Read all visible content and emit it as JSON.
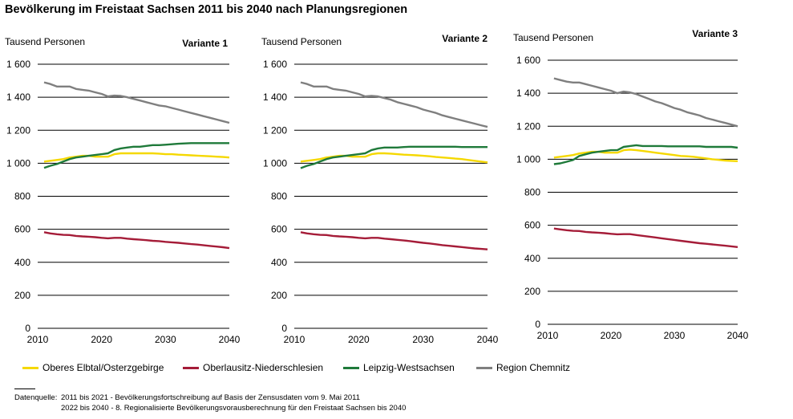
{
  "title": "Bevölkerung im Freistaat Sachsen 2011 bis 2040 nach Planungsregionen",
  "colors": {
    "Oberes Elbtal/Osterzgebirge": "#f5d800",
    "Oberlausitz-Niederschlesien": "#a51c38",
    "Leipzig-Westsachsen": "#1f7a3a",
    "Region Chemnitz": "#7f7f7f"
  },
  "legend": [
    {
      "label": "Oberes Elbtal/Osterzgebirge",
      "color": "#f5d800"
    },
    {
      "label": "Oberlausitz-Niederschlesien",
      "color": "#a51c38"
    },
    {
      "label": "Leipzig-Westsachsen",
      "color": "#1f7a3a"
    },
    {
      "label": "Region Chemnitz",
      "color": "#7f7f7f"
    }
  ],
  "source": {
    "label": "Datenquelle:",
    "line1": "2011 bis 2021 - Bevölkerungsfortschreibung auf Basis der Zensusdaten vom 9. Mai 2011",
    "line2": "2022 bis 2040 - 8. Regionalisierte Bevölkerungsvorausberechnung für den Freistaat Sachsen bis 2040"
  },
  "chart_data": [
    {
      "type": "line",
      "title": "Variante 1",
      "ylabel": "Tausend Personen",
      "xlabel": "",
      "xlim": [
        2010,
        2040
      ],
      "ylim": [
        0,
        1600
      ],
      "grid": "horizontal",
      "x_ticks": [
        "2010",
        "2020",
        "2030",
        "2040"
      ],
      "y_ticks": [
        "0",
        "200",
        "400",
        "600",
        "800",
        "1 000",
        "1 200",
        "1 400",
        "1 600"
      ],
      "x": [
        2011,
        2012,
        2013,
        2014,
        2015,
        2016,
        2017,
        2018,
        2019,
        2020,
        2021,
        2022,
        2023,
        2024,
        2025,
        2026,
        2027,
        2028,
        2029,
        2030,
        2031,
        2032,
        2033,
        2034,
        2035,
        2036,
        2037,
        2038,
        2039,
        2040
      ],
      "series": [
        {
          "name": "Oberes Elbtal/Osterzgebirge",
          "values": [
            1010,
            1015,
            1020,
            1025,
            1035,
            1040,
            1045,
            1045,
            1040,
            1040,
            1040,
            1055,
            1060,
            1060,
            1060,
            1060,
            1060,
            1060,
            1058,
            1055,
            1055,
            1052,
            1050,
            1048,
            1046,
            1044,
            1042,
            1040,
            1038,
            1035
          ]
        },
        {
          "name": "Oberlausitz-Niederschlesien",
          "values": [
            582,
            575,
            570,
            566,
            565,
            560,
            557,
            555,
            552,
            548,
            545,
            548,
            548,
            543,
            540,
            537,
            534,
            530,
            528,
            524,
            521,
            518,
            514,
            510,
            507,
            503,
            499,
            495,
            491,
            486
          ]
        },
        {
          "name": "Leipzig-Westsachsen",
          "values": [
            972,
            985,
            995,
            1010,
            1025,
            1035,
            1040,
            1045,
            1050,
            1055,
            1060,
            1080,
            1090,
            1095,
            1100,
            1100,
            1105,
            1110,
            1110,
            1112,
            1115,
            1118,
            1120,
            1122,
            1122,
            1122,
            1122,
            1122,
            1122,
            1122
          ]
        },
        {
          "name": "Region Chemnitz",
          "values": [
            1490,
            1480,
            1465,
            1465,
            1465,
            1450,
            1445,
            1440,
            1430,
            1420,
            1405,
            1410,
            1408,
            1400,
            1390,
            1380,
            1370,
            1360,
            1350,
            1345,
            1335,
            1325,
            1315,
            1305,
            1295,
            1285,
            1275,
            1265,
            1255,
            1245
          ]
        }
      ]
    },
    {
      "type": "line",
      "title": "Variante 2",
      "ylabel": "Tausend Personen",
      "xlabel": "",
      "xlim": [
        2010,
        2040
      ],
      "ylim": [
        0,
        1600
      ],
      "grid": "horizontal",
      "x_ticks": [
        "2010",
        "2020",
        "2030",
        "2040"
      ],
      "y_ticks": [
        "0",
        "200",
        "400",
        "600",
        "800",
        "1 000",
        "1 200",
        "1 400",
        "1 600"
      ],
      "x": [
        2011,
        2012,
        2013,
        2014,
        2015,
        2016,
        2017,
        2018,
        2019,
        2020,
        2021,
        2022,
        2023,
        2024,
        2025,
        2026,
        2027,
        2028,
        2029,
        2030,
        2031,
        2032,
        2033,
        2034,
        2035,
        2036,
        2037,
        2038,
        2039,
        2040
      ],
      "series": [
        {
          "name": "Oberes Elbtal/Osterzgebirge",
          "values": [
            1010,
            1015,
            1020,
            1025,
            1035,
            1040,
            1045,
            1045,
            1040,
            1040,
            1040,
            1055,
            1060,
            1060,
            1058,
            1055,
            1052,
            1050,
            1048,
            1045,
            1042,
            1038,
            1035,
            1032,
            1028,
            1025,
            1020,
            1015,
            1010,
            1005
          ]
        },
        {
          "name": "Oberlausitz-Niederschlesien",
          "values": [
            582,
            575,
            570,
            566,
            565,
            560,
            557,
            555,
            552,
            548,
            545,
            548,
            548,
            543,
            540,
            536,
            532,
            528,
            523,
            518,
            514,
            509,
            504,
            500,
            496,
            492,
            488,
            484,
            481,
            478
          ]
        },
        {
          "name": "Leipzig-Westsachsen",
          "values": [
            970,
            985,
            995,
            1010,
            1025,
            1035,
            1040,
            1045,
            1050,
            1055,
            1060,
            1080,
            1090,
            1095,
            1095,
            1095,
            1098,
            1100,
            1100,
            1100,
            1100,
            1100,
            1100,
            1100,
            1100,
            1098,
            1098,
            1098,
            1098,
            1098
          ]
        },
        {
          "name": "Region Chemnitz",
          "values": [
            1490,
            1480,
            1465,
            1465,
            1465,
            1450,
            1445,
            1440,
            1430,
            1420,
            1405,
            1408,
            1405,
            1395,
            1385,
            1370,
            1360,
            1350,
            1340,
            1325,
            1315,
            1305,
            1290,
            1280,
            1270,
            1260,
            1250,
            1240,
            1230,
            1220
          ]
        }
      ]
    },
    {
      "type": "line",
      "title": "Variante 3",
      "ylabel": "Tausend Personen",
      "xlabel": "",
      "xlim": [
        2010,
        2040
      ],
      "ylim": [
        0,
        1600
      ],
      "grid": "horizontal",
      "x_ticks": [
        "2010",
        "2020",
        "2030",
        "2040"
      ],
      "y_ticks": [
        "0",
        "200",
        "400",
        "600",
        "800",
        "1 000",
        "1 200",
        "1 400",
        "1 600"
      ],
      "x": [
        2011,
        2012,
        2013,
        2014,
        2015,
        2016,
        2017,
        2018,
        2019,
        2020,
        2021,
        2022,
        2023,
        2024,
        2025,
        2026,
        2027,
        2028,
        2029,
        2030,
        2031,
        2032,
        2033,
        2034,
        2035,
        2036,
        2037,
        2038,
        2039,
        2040
      ],
      "series": [
        {
          "name": "Oberes Elbtal/Osterzgebirge",
          "values": [
            1010,
            1015,
            1020,
            1025,
            1035,
            1040,
            1045,
            1045,
            1040,
            1040,
            1040,
            1055,
            1058,
            1055,
            1050,
            1045,
            1040,
            1035,
            1030,
            1025,
            1020,
            1018,
            1015,
            1010,
            1005,
            1000,
            996,
            992,
            990,
            988
          ]
        },
        {
          "name": "Oberlausitz-Niederschlesien",
          "values": [
            580,
            575,
            570,
            566,
            565,
            560,
            557,
            555,
            552,
            548,
            545,
            546,
            546,
            541,
            536,
            531,
            526,
            521,
            516,
            511,
            506,
            501,
            496,
            491,
            488,
            484,
            480,
            476,
            472,
            468
          ]
        },
        {
          "name": "Leipzig-Westsachsen",
          "values": [
            970,
            975,
            985,
            995,
            1020,
            1030,
            1040,
            1045,
            1050,
            1055,
            1055,
            1075,
            1080,
            1085,
            1080,
            1080,
            1080,
            1080,
            1078,
            1078,
            1078,
            1078,
            1078,
            1078,
            1075,
            1075,
            1075,
            1075,
            1075,
            1070
          ]
        },
        {
          "name": "Region Chemnitz",
          "values": [
            1490,
            1480,
            1470,
            1465,
            1465,
            1455,
            1445,
            1435,
            1425,
            1415,
            1400,
            1410,
            1405,
            1395,
            1380,
            1365,
            1350,
            1340,
            1325,
            1310,
            1300,
            1285,
            1275,
            1265,
            1250,
            1240,
            1230,
            1220,
            1210,
            1200
          ]
        }
      ]
    }
  ]
}
